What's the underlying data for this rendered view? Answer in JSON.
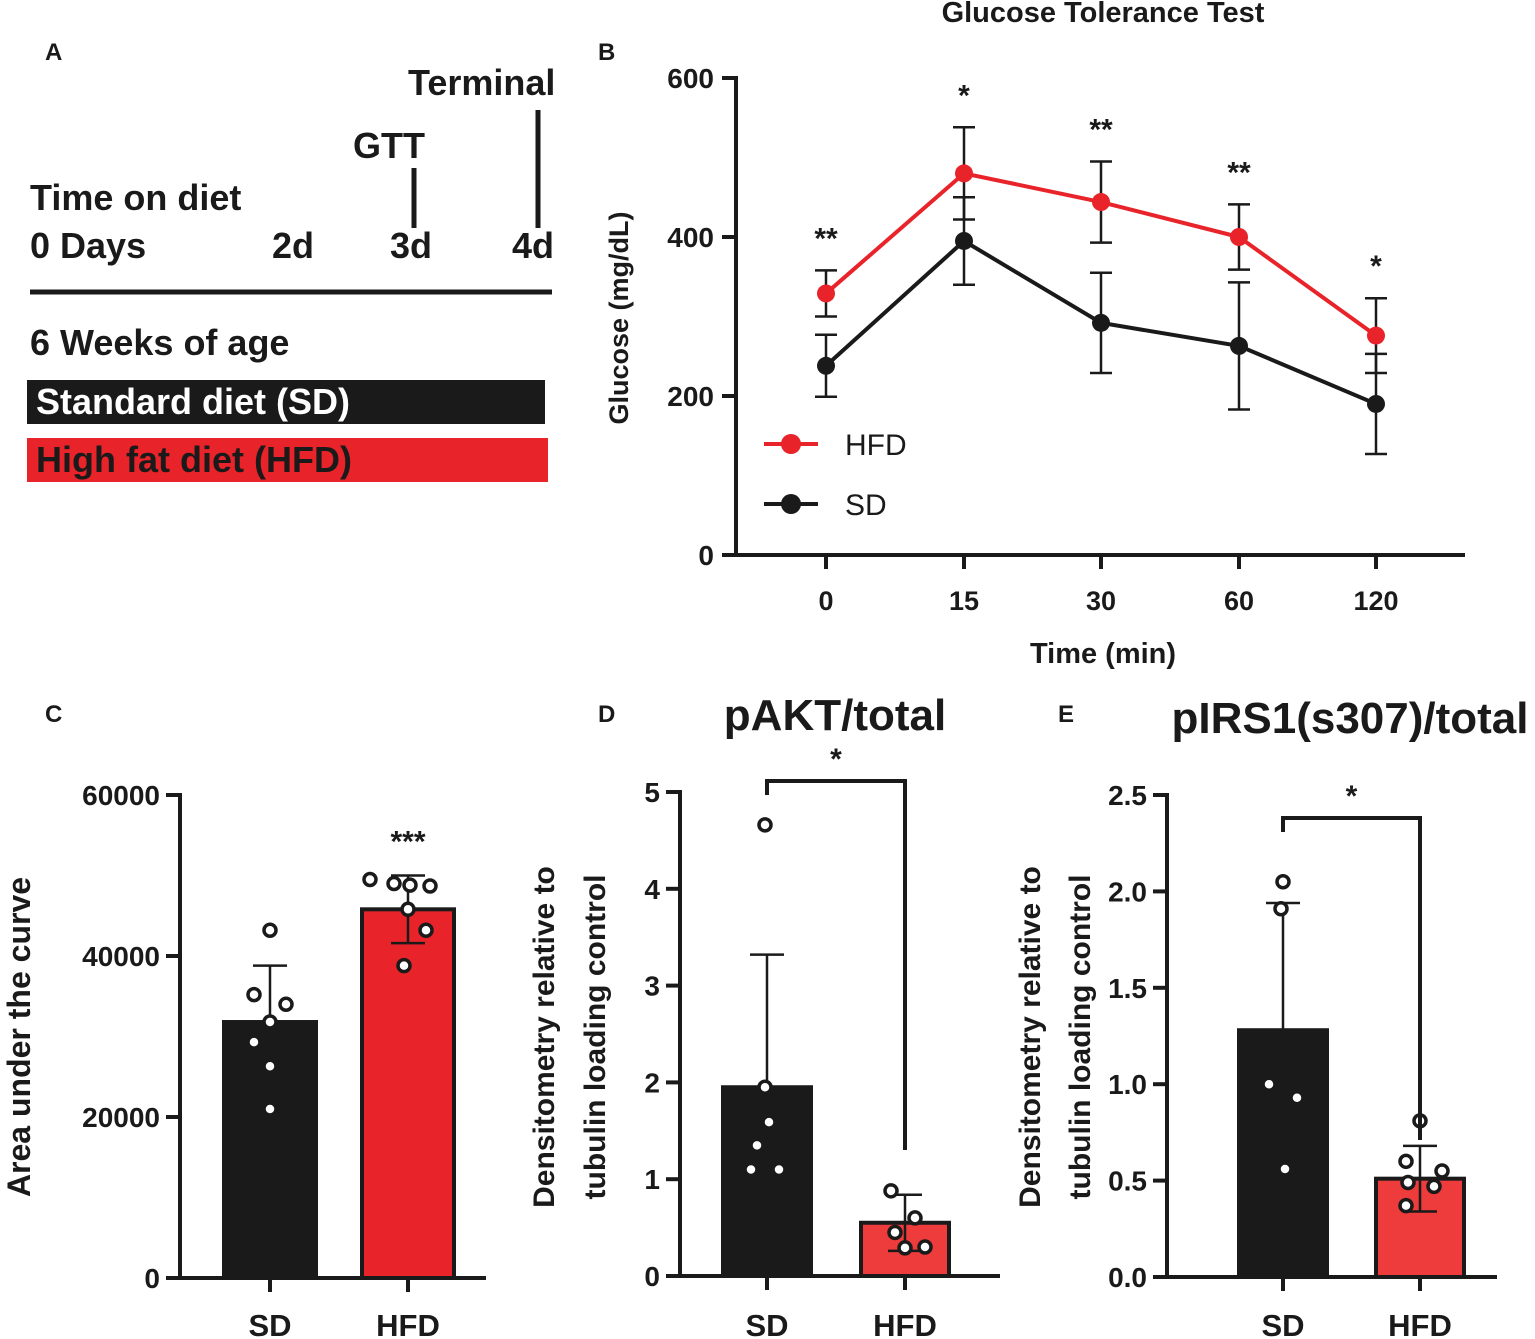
{
  "panel_labels": [
    "A",
    "B",
    "C",
    "D",
    "E"
  ],
  "timeline": {
    "events": [
      "Terminal",
      "GTT"
    ],
    "time_on_diet_label": "Time on diet",
    "days": [
      "0 Days",
      "2d",
      "3d",
      "4d"
    ],
    "age_label": "6 Weeks of age",
    "diets": [
      {
        "label": "Standard diet (SD)",
        "color": "#1b1a1a",
        "text_color": "#ffffff"
      },
      {
        "label": "High fat diet (HFD)",
        "color": "#e8232a",
        "text_color": "#1a1a1a"
      }
    ]
  },
  "colors": {
    "hfd": "#e8232a",
    "hfd_bar": "#ee3b3b",
    "sd": "#1b1a1a",
    "axis": "#1a1a1a"
  },
  "chart_data": [
    {
      "panel": "B",
      "type": "line",
      "title": "Glucose Tolerance Test",
      "xlabel": "Time (min)",
      "ylabel": "Glucose (mg/dL)",
      "categories": [
        "0",
        "15",
        "30",
        "60",
        "120"
      ],
      "ylim": [
        0,
        600
      ],
      "yticks": [
        "0",
        "200",
        "400",
        "600"
      ],
      "legend_position": "bottom-left",
      "series": [
        {
          "name": "HFD",
          "color": "#e8232a",
          "values": [
            329,
            480,
            444,
            400,
            276
          ],
          "sd": [
            29,
            58,
            51,
            41,
            47
          ]
        },
        {
          "name": "SD",
          "color": "#1b1a1a",
          "values": [
            238,
            395,
            292,
            263,
            190
          ],
          "sd": [
            39,
            55,
            63,
            80,
            63
          ]
        }
      ],
      "significance": [
        "**",
        "*",
        "**",
        "**",
        "*"
      ]
    },
    {
      "panel": "C",
      "type": "bar",
      "xlabel": "",
      "ylabel": "Area under the curve",
      "categories": [
        "SD",
        "HFD"
      ],
      "values": [
        31800,
        45800
      ],
      "sd": [
        7000,
        4200
      ],
      "ylim": [
        0,
        60000
      ],
      "yticks": [
        "0",
        "20000",
        "40000",
        "60000"
      ],
      "points": [
        [
          43200,
          35200,
          34000,
          31800,
          29300,
          26300,
          21000
        ],
        [
          49500,
          49000,
          48800,
          48700,
          45800,
          43200,
          38800
        ]
      ],
      "significance": "***"
    },
    {
      "panel": "D",
      "type": "bar",
      "title": "pAKT/total",
      "xlabel": "",
      "ylabel_lines": [
        "Densitometry relative to",
        "tubulin loading control"
      ],
      "categories": [
        "SD",
        "HFD"
      ],
      "values": [
        1.95,
        0.55
      ],
      "sd": [
        1.37,
        0.29
      ],
      "ylim": [
        0,
        5
      ],
      "yticks": [
        "0",
        "1",
        "2",
        "3",
        "4",
        "5"
      ],
      "points": [
        [
          4.66,
          1.95,
          1.59,
          1.35,
          1.1,
          1.1
        ],
        [
          0.88,
          0.6,
          0.45,
          0.29,
          0.3
        ]
      ],
      "significance": "*"
    },
    {
      "panel": "E",
      "type": "bar",
      "title": "pIRS1(s307)/total",
      "xlabel": "",
      "ylabel_lines": [
        "Densitometry relative to",
        "tubulin loading control"
      ],
      "categories": [
        "SD",
        "HFD"
      ],
      "values": [
        1.28,
        0.51
      ],
      "sd": [
        0.66,
        0.17
      ],
      "ylim": [
        0,
        2.5
      ],
      "yticks": [
        "0.0",
        "0.5",
        "1.0",
        "1.5",
        "2.0",
        "2.5"
      ],
      "points": [
        [
          2.05,
          1.91,
          1.0,
          0.93,
          0.56
        ],
        [
          0.81,
          0.6,
          0.55,
          0.49,
          0.47,
          0.37
        ]
      ],
      "significance": "*"
    }
  ]
}
